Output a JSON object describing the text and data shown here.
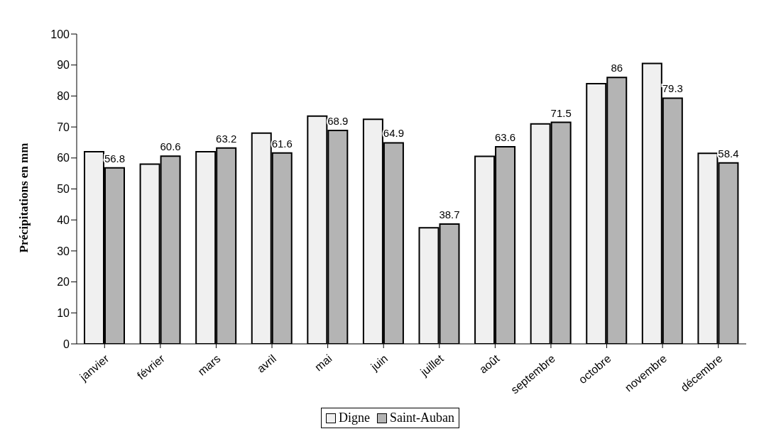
{
  "chart_data": {
    "type": "bar",
    "ylabel": "Précipitations en mm",
    "categories": [
      "janvier",
      "février",
      "mars",
      "avril",
      "mai",
      "juin",
      "juillet",
      "août",
      "septembre",
      "octobre",
      "novembre",
      "décembre"
    ],
    "series": [
      {
        "name": "Digne",
        "color": "#f0f0f0",
        "values": [
          62,
          58,
          62,
          68,
          73.5,
          72.5,
          37.5,
          60.5,
          71,
          84,
          90.5,
          61.5
        ]
      },
      {
        "name": "Saint-Auban",
        "color": "#b4b4b4",
        "values": [
          56.8,
          60.6,
          63.2,
          61.6,
          68.9,
          64.9,
          38.7,
          63.6,
          71.5,
          86,
          79.3,
          58.4
        ],
        "value_labels": [
          "56.8",
          "60.6",
          "63.2",
          "61.6",
          "68.9",
          "64.9",
          "38.7",
          "63.6",
          "71.5",
          "86",
          "79.3",
          "58.4"
        ]
      }
    ],
    "ylim": [
      0,
      100
    ],
    "yticks": [
      0,
      10,
      20,
      30,
      40,
      50,
      60,
      70,
      80,
      90,
      100
    ],
    "grid": false,
    "legend": "bottom"
  }
}
